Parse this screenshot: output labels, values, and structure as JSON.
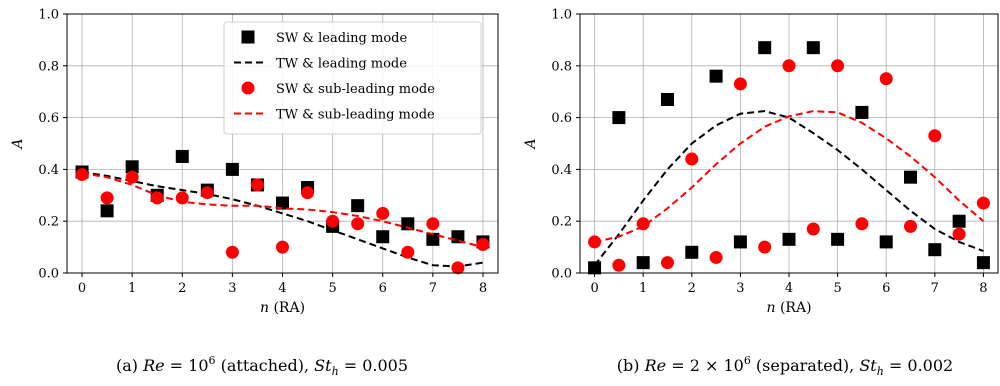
{
  "chart_data": [
    {
      "type": "scatter",
      "panel": "a",
      "caption": {
        "prefix": "(a) ",
        "re_sym": "Re",
        "re_eq": " = 10",
        "re_exp": "6",
        "regime": " (attached), ",
        "st_sym": "St",
        "st_sub": "h",
        "st_val": " = 0.005"
      },
      "xlabel_sym": "n",
      "xlabel_unit": " (RA)",
      "ylabel": "A",
      "xlim": [
        -0.3,
        8.3
      ],
      "ylim": [
        0,
        1.0
      ],
      "xticks": [
        0,
        1,
        2,
        3,
        4,
        5,
        6,
        7,
        8
      ],
      "yticks": [
        "0.0",
        "0.2",
        "0.4",
        "0.6",
        "0.8",
        "1.0"
      ],
      "grid": true,
      "legend_position": "top-right",
      "series": [
        {
          "name": "SW & leading mode",
          "kind": "square-marker",
          "color": "#000000",
          "x": [
            0,
            0.5,
            1,
            1.5,
            2,
            2.5,
            3,
            3.5,
            4,
            4.5,
            5,
            5.5,
            6,
            6.5,
            7,
            7.5,
            8
          ],
          "y": [
            0.39,
            0.24,
            0.41,
            0.3,
            0.45,
            0.32,
            0.4,
            0.34,
            0.27,
            0.33,
            0.18,
            0.26,
            0.14,
            0.19,
            0.13,
            0.14,
            0.12
          ]
        },
        {
          "name": "TW & leading mode",
          "kind": "dashed-line",
          "color": "#000000",
          "x": [
            0,
            0.5,
            1,
            1.5,
            2,
            2.5,
            3,
            3.5,
            4,
            4.5,
            5,
            5.5,
            6,
            6.5,
            7,
            7.5,
            8
          ],
          "y": [
            0.39,
            0.375,
            0.355,
            0.335,
            0.32,
            0.305,
            0.285,
            0.26,
            0.23,
            0.2,
            0.165,
            0.13,
            0.095,
            0.06,
            0.03,
            0.025,
            0.04
          ]
        },
        {
          "name": "SW & sub-leading mode",
          "kind": "circle-marker",
          "color": "#ff0000",
          "x": [
            0,
            0.5,
            1,
            1.5,
            2,
            2.5,
            3,
            3.5,
            4,
            4.5,
            5,
            5.5,
            6,
            6.5,
            7,
            7.5,
            8
          ],
          "y": [
            0.38,
            0.29,
            0.37,
            0.29,
            0.29,
            0.31,
            0.08,
            0.34,
            0.1,
            0.31,
            0.2,
            0.19,
            0.23,
            0.08,
            0.19,
            0.02,
            0.11
          ]
        },
        {
          "name": "TW & sub-leading mode",
          "kind": "dashed-line",
          "color": "#ff0000",
          "x": [
            0,
            0.5,
            1,
            1.5,
            2,
            2.5,
            3,
            3.5,
            4,
            4.5,
            5,
            5.5,
            6,
            6.5,
            7,
            7.5,
            8
          ],
          "y": [
            0.385,
            0.37,
            0.34,
            0.3,
            0.275,
            0.265,
            0.26,
            0.26,
            0.25,
            0.245,
            0.235,
            0.22,
            0.2,
            0.175,
            0.15,
            0.125,
            0.1
          ]
        }
      ]
    },
    {
      "type": "scatter",
      "panel": "b",
      "caption": {
        "prefix": "(b) ",
        "re_sym": "Re",
        "re_eq": " = 2 × 10",
        "re_exp": "6",
        "regime": " (separated), ",
        "st_sym": "St",
        "st_sub": "h",
        "st_val": " = 0.002"
      },
      "xlabel_sym": "n",
      "xlabel_unit": " (RA)",
      "ylabel": "A",
      "xlim": [
        -0.3,
        8.3
      ],
      "ylim": [
        0,
        1.0
      ],
      "xticks": [
        0,
        1,
        2,
        3,
        4,
        5,
        6,
        7,
        8
      ],
      "yticks": [
        "0.0",
        "0.2",
        "0.4",
        "0.6",
        "0.8",
        "1.0"
      ],
      "grid": true,
      "legend_position": "",
      "series": [
        {
          "kind": "square-marker",
          "color": "#000000",
          "x": [
            0,
            0.5,
            1,
            1.5,
            2,
            2.5,
            3,
            3.5,
            4,
            4.5,
            5,
            5.5,
            6,
            6.5,
            7,
            7.5,
            8
          ],
          "y": [
            0.02,
            0.6,
            0.04,
            0.67,
            0.08,
            0.76,
            0.12,
            0.87,
            0.13,
            0.87,
            0.13,
            0.62,
            0.12,
            0.37,
            0.09,
            0.2,
            0.04
          ]
        },
        {
          "kind": "dashed-line",
          "color": "#000000",
          "x": [
            0,
            0.5,
            1,
            1.5,
            2,
            2.5,
            3,
            3.5,
            4,
            4.5,
            5,
            5.5,
            6,
            6.5,
            7,
            7.5,
            8
          ],
          "y": [
            0.03,
            0.15,
            0.28,
            0.4,
            0.5,
            0.57,
            0.615,
            0.625,
            0.6,
            0.54,
            0.475,
            0.4,
            0.32,
            0.24,
            0.17,
            0.12,
            0.085
          ]
        },
        {
          "kind": "circle-marker",
          "color": "#ff0000",
          "x": [
            0,
            0.5,
            1,
            1.5,
            2,
            2.5,
            3,
            3.5,
            4,
            4.5,
            5,
            5.5,
            6,
            6.5,
            7,
            7.5,
            8
          ],
          "y": [
            0.12,
            0.03,
            0.19,
            0.04,
            0.44,
            0.06,
            0.73,
            0.1,
            0.8,
            0.17,
            0.8,
            0.19,
            0.75,
            0.18,
            0.53,
            0.15,
            0.27
          ]
        },
        {
          "kind": "dashed-line",
          "color": "#ff0000",
          "x": [
            0,
            0.5,
            1,
            1.5,
            2,
            2.5,
            3,
            3.5,
            4,
            4.5,
            5,
            5.5,
            6,
            6.5,
            7,
            7.5,
            8
          ],
          "y": [
            0.12,
            0.14,
            0.18,
            0.25,
            0.33,
            0.42,
            0.5,
            0.565,
            0.605,
            0.625,
            0.62,
            0.58,
            0.52,
            0.45,
            0.37,
            0.28,
            0.2
          ]
        }
      ]
    }
  ]
}
